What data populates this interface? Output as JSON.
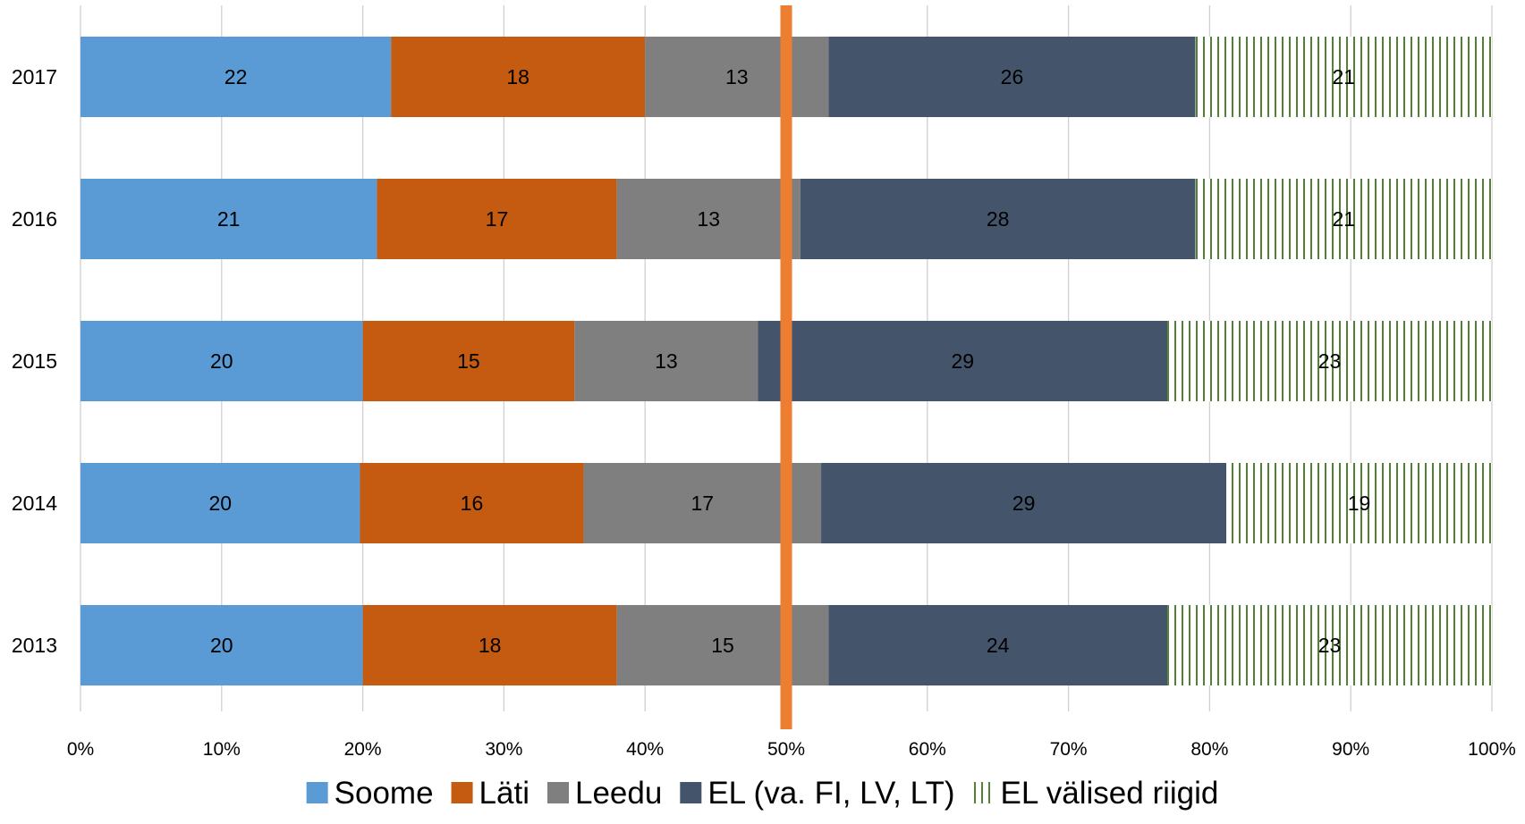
{
  "chart_data": {
    "type": "bar",
    "orientation": "horizontal",
    "stacked": "percent",
    "categories": [
      "2017",
      "2016",
      "2015",
      "2014",
      "2013"
    ],
    "series": [
      {
        "name": "Soome",
        "color": "#5B9BD5",
        "values": [
          22,
          21,
          20,
          20,
          20
        ]
      },
      {
        "name": "Läti",
        "color": "#C55A11",
        "values": [
          18,
          17,
          15,
          16,
          18
        ]
      },
      {
        "name": "Leedu",
        "color": "#7F7F7F",
        "values": [
          13,
          13,
          13,
          17,
          15
        ]
      },
      {
        "name": "EL (va. FI, LV, LT)",
        "color": "#44546A",
        "values": [
          26,
          28,
          29,
          29,
          24
        ]
      },
      {
        "name": "EL välised riigid",
        "color": "#548235",
        "pattern": "vertical-stripes",
        "values": [
          21,
          21,
          23,
          19,
          23
        ]
      }
    ],
    "x_ticks": [
      "0%",
      "10%",
      "20%",
      "30%",
      "40%",
      "50%",
      "60%",
      "70%",
      "80%",
      "90%",
      "100%"
    ],
    "xlim": [
      0,
      100
    ],
    "reference_line": {
      "value": 50,
      "color": "#ED7D31"
    },
    "grid": true,
    "legend": "bottom"
  }
}
